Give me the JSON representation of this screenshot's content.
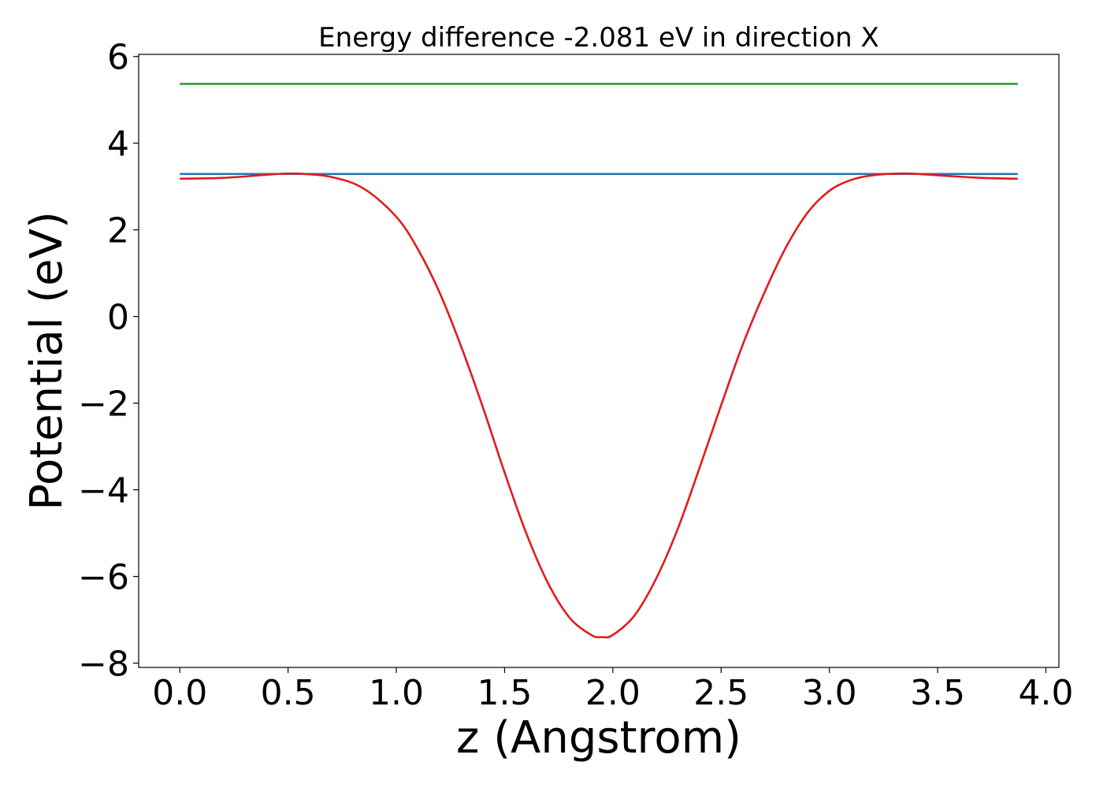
{
  "chart_data": {
    "type": "line",
    "title": "Energy difference -2.081 eV in direction X",
    "xlabel": "z (Angstrom)",
    "ylabel": "Potential (eV)",
    "xlim": [
      -0.19,
      4.06
    ],
    "ylim": [
      -8.1,
      6.05
    ],
    "xticks": [
      0.0,
      0.5,
      1.0,
      1.5,
      2.0,
      2.5,
      3.0,
      3.5,
      4.0
    ],
    "xtick_labels": [
      "0.0",
      "0.5",
      "1.0",
      "1.5",
      "2.0",
      "2.5",
      "3.0",
      "3.5",
      "4.0"
    ],
    "yticks": [
      6,
      4,
      2,
      0,
      -2,
      -4,
      -6,
      -8
    ],
    "ytick_labels": [
      "6",
      "4",
      "2",
      "0",
      "−2",
      "−4",
      "−6",
      "−8"
    ],
    "grid": false,
    "series": [
      {
        "color": "#2ca02c",
        "x": [
          0.0,
          3.87
        ],
        "y": [
          5.37,
          5.37
        ]
      },
      {
        "color": "#1f77b4",
        "x": [
          0.0,
          3.87
        ],
        "y": [
          3.29,
          3.29
        ]
      },
      {
        "color": "#e31a1c",
        "x": [
          0.0,
          0.2,
          0.4,
          0.53,
          0.7,
          0.85,
          1.0,
          1.1,
          1.2,
          1.3,
          1.4,
          1.5,
          1.6,
          1.7,
          1.8,
          1.9,
          1.95,
          2.0,
          2.1,
          2.2,
          2.3,
          2.4,
          2.5,
          2.6,
          2.7,
          2.8,
          2.9,
          3.0,
          3.1,
          3.2,
          3.35,
          3.5,
          3.7,
          3.87
        ],
        "y": [
          3.18,
          3.2,
          3.27,
          3.3,
          3.22,
          2.95,
          2.3,
          1.55,
          0.55,
          -0.7,
          -2.1,
          -3.6,
          -5.0,
          -6.15,
          -6.95,
          -7.35,
          -7.4,
          -7.35,
          -6.9,
          -6.05,
          -4.9,
          -3.5,
          -2.05,
          -0.65,
          0.55,
          1.6,
          2.4,
          2.9,
          3.15,
          3.26,
          3.3,
          3.26,
          3.2,
          3.18
        ]
      }
    ]
  }
}
